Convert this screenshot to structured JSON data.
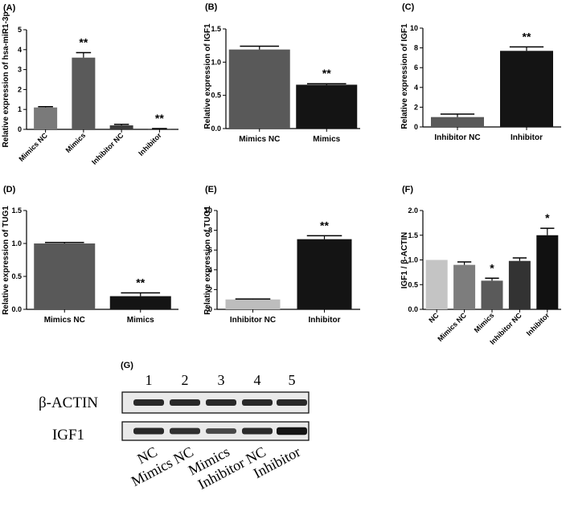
{
  "significance_markers": {
    "double": "**",
    "single": "*"
  },
  "chart_data": [
    {
      "id": "A",
      "panel_label": "(A)",
      "type": "bar",
      "categories": [
        "Mimics NC",
        "Mimics",
        "Inhibitor NC",
        "Inhibitor"
      ],
      "values": [
        1.1,
        3.6,
        0.2,
        0.02
      ],
      "errors": [
        0.04,
        0.25,
        0.05,
        0.02
      ],
      "significance": [
        "",
        "**",
        "",
        "**"
      ],
      "colors": [
        "#7a7a7a",
        "#5a5a5a",
        "#3c3c3c",
        "#151515"
      ],
      "ylabel": "Relative expression of hsa-miR1-3p",
      "ylim": [
        0,
        5
      ],
      "yticks": [
        "0",
        "1",
        "2",
        "3",
        "4",
        "5"
      ],
      "xlabel_rotated": true
    },
    {
      "id": "B",
      "panel_label": "(B)",
      "type": "bar",
      "categories": [
        "Mimics NC",
        "Mimics"
      ],
      "values": [
        1.19,
        0.66
      ],
      "errors": [
        0.05,
        0.015
      ],
      "significance": [
        "",
        "**"
      ],
      "colors": [
        "#595959",
        "#141414"
      ],
      "ylabel": "Relative expression of IGF1",
      "ylim": [
        0,
        1.5
      ],
      "yticks": [
        "0.0",
        "0.5",
        "1.0",
        "1.5"
      ],
      "xlabel_rotated": false
    },
    {
      "id": "C",
      "panel_label": "(C)",
      "type": "bar",
      "categories": [
        "Inhibitor NC",
        "Inhibitor"
      ],
      "values": [
        1.0,
        7.7
      ],
      "errors": [
        0.3,
        0.4
      ],
      "significance": [
        "",
        "**"
      ],
      "colors": [
        "#595959",
        "#141414"
      ],
      "ylabel": "Relative expression of IGF1",
      "ylim": [
        0,
        10
      ],
      "yticks": [
        "0",
        "2",
        "4",
        "6",
        "8",
        "10"
      ],
      "xlabel_rotated": false
    },
    {
      "id": "D",
      "panel_label": "(D)",
      "type": "bar",
      "categories": [
        "Mimics NC",
        "Mimics"
      ],
      "values": [
        1.0,
        0.2
      ],
      "errors": [
        0.015,
        0.05
      ],
      "significance": [
        "",
        "**"
      ],
      "colors": [
        "#595959",
        "#141414"
      ],
      "ylabel": "Relative expression of TUG1",
      "ylim": [
        0,
        1.5
      ],
      "yticks": [
        "0.0",
        "0.5",
        "1.0",
        "1.5"
      ],
      "xlabel_rotated": false
    },
    {
      "id": "E",
      "panel_label": "(E)",
      "type": "bar",
      "categories": [
        "Inhibitor NC",
        "Inhibitor"
      ],
      "values": [
        1.0,
        7.1
      ],
      "errors": [
        0.05,
        0.35
      ],
      "significance": [
        "",
        "**"
      ],
      "colors": [
        "#bdbdbd",
        "#141414"
      ],
      "ylabel": "Relative expression of TUG1",
      "ylim": [
        0,
        10
      ],
      "yticks": [
        "0",
        "2",
        "4",
        "6",
        "8",
        "10"
      ],
      "xlabel_rotated": false
    },
    {
      "id": "F",
      "panel_label": "(F)",
      "type": "bar",
      "categories": [
        "NC",
        "Mimics NC",
        "Mimics",
        "Inhibitor NC",
        "Inhibitor"
      ],
      "values": [
        1.0,
        0.9,
        0.58,
        0.98,
        1.5
      ],
      "errors": [
        0,
        0.06,
        0.05,
        0.06,
        0.14
      ],
      "significance": [
        "",
        "",
        "*",
        "",
        "*"
      ],
      "colors": [
        "#c4c4c4",
        "#7d7d7d",
        "#5a5a5a",
        "#333333",
        "#111111"
      ],
      "ylabel": "IGF1 / β-ACTIN",
      "ylim": [
        0,
        2.0
      ],
      "yticks": [
        "0.0",
        "0.5",
        "1.0",
        "1.5",
        "2.0"
      ],
      "xlabel_rotated": true
    }
  ],
  "western_blot": {
    "panel_label": "(G)",
    "lane_numbers": [
      "1",
      "2",
      "3",
      "4",
      "5"
    ],
    "rows": [
      {
        "label": "β-ACTIN",
        "intensity": [
          1.0,
          1.0,
          1.0,
          1.0,
          1.0
        ]
      },
      {
        "label": "IGF1",
        "intensity": [
          1.0,
          0.9,
          0.6,
          0.98,
          1.5
        ]
      }
    ],
    "lane_labels": [
      "NC",
      "Mimics NC",
      "Mimics",
      "Inhibitor NC",
      "Inhibitor"
    ]
  }
}
